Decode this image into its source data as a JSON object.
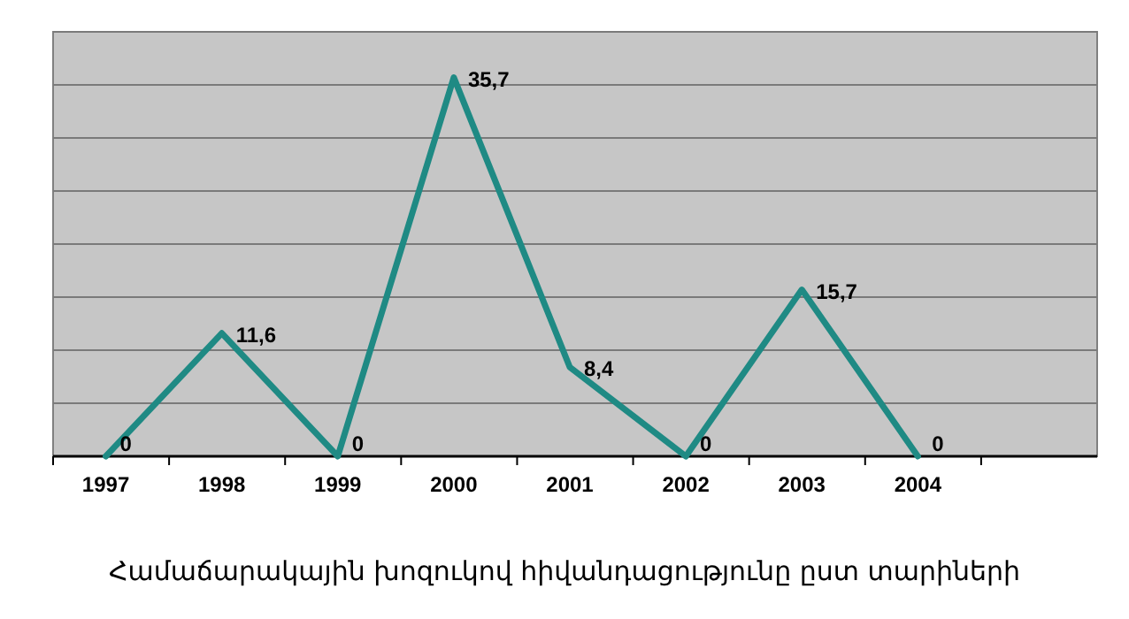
{
  "chart_data": {
    "type": "line",
    "title": "Համաճարակային խոզուկով  հիվանդացությունը ըստ տարիների",
    "categories": [
      "1997",
      "1998",
      "1999",
      "2000",
      "2001",
      "2002",
      "2003",
      "2004",
      null
    ],
    "series": [
      {
        "color": "#1f8a84",
        "values": [
          0,
          11.6,
          0,
          35.7,
          8.4,
          0,
          15.7,
          0,
          null
        ],
        "value_labels": [
          "0",
          "11,6",
          "0",
          "35,7",
          "8,4",
          "0",
          "15,7",
          "0",
          null
        ]
      }
    ],
    "ylim": [
      0,
      40
    ],
    "yticks": [
      {
        "value": 0,
        "label": null
      },
      {
        "value": 5,
        "label": null
      },
      {
        "value": 10,
        "label": null
      },
      {
        "value": 15,
        "label": null
      },
      {
        "value": 20,
        "label": null
      },
      {
        "value": 25,
        "label": null
      },
      {
        "value": 30,
        "label": null
      },
      {
        "value": 35,
        "label": null
      },
      {
        "value": 40,
        "label": null
      }
    ],
    "tick_labels": "x",
    "grid": "y",
    "marker": "none",
    "line_style": "solid"
  }
}
